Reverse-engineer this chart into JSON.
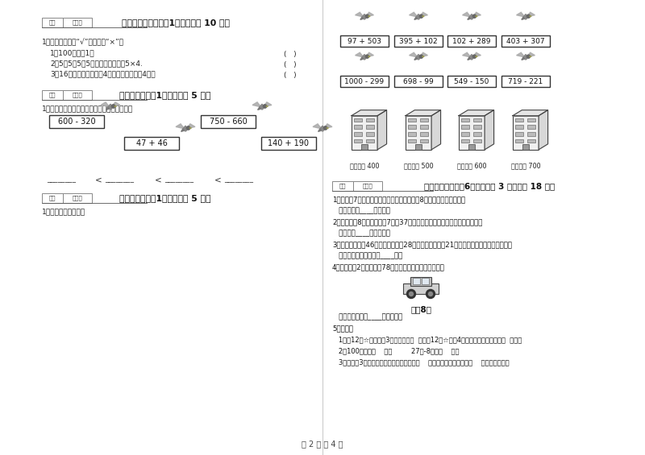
{
  "bg_color": "#ffffff",
  "page_label": "第 2 页 共 4 页",
  "sec5_header": "得分  评卷人",
  "sec5_title": "五、判断对与错（共1大题，共计 10 分）",
  "sec5_intro": "1．判断，对的画“√”，错的画“×”。",
  "sec5_items": [
    "1．100厘米＝1米",
    "2．5＋5＋5＋5改写成乘法算式是5×4.",
    "3．16个苹果，平均放在4个盘子里，每盘放4个。"
  ],
  "sec6_header": "得分  评卷人",
  "sec6_title": "六、比一比（共1大题，共计 5 分）",
  "sec6_intro": "1．把下列算式按得数大小，从小到大排一行。",
  "sec6_boxes": [
    "600 - 320",
    "47 + 46",
    "750 - 660",
    "140 + 190"
  ],
  "sec7_header": "得分  评卷人",
  "sec7_title": "七、连一连（共1大题，共计 5 分）",
  "sec7_intro": "1．估一估，连一连。",
  "right_birds_row1": [
    "97 + 503",
    "395 + 102",
    "102 + 289",
    "403 + 307"
  ],
  "right_birds_row2": [
    "1000 - 299",
    "698 - 99",
    "549 - 150",
    "719 - 221"
  ],
  "right_buildings": [
    "得数接近 400",
    "得数大约 500",
    "得数接近 600",
    "得数大约 700"
  ],
  "sec8_header": "得分  评卷人",
  "sec8_title": "八、解决问题（共6小题，每题 3 分，共计 18 分）",
  "sec8_p1": "1．小明有7张图片，小丽的图片张数是小明的8倍，小丽有几张图片？",
  "sec8_a1": "   答：小丽有____张图片。",
  "sec8_p2": "2．校园里有8排松树，每排7棵，37棵松树已经浇了水，还有多少棵没浇水？",
  "sec8_a2": "   答：还有____棵没浇水。",
  "sec8_p3": "3．水果店有水果46筐，上午卖出去28筐，下午又运进来21筐，水果店现在有水果多少筐？",
  "sec8_a3": "   答：水果店现在有水果____筐。",
  "sec8_p4": "4．希望小学2年级有学生78人，至少需要租几辆面包车？",
  "sec8_car_label": "限垈8人",
  "sec8_a4": "   答：至少需要租____辆面包车。",
  "sec8_p5": "5．填空。",
  "sec8_p5_1": "   1．把12个☆平均分成3份，每份是（  ）个；12个☆，每4个分成一份，可以分成（  ）份。",
  "sec8_p5_2": "   2．100厘米＝（    ）米         27米-8米＝（    ）米",
  "sec8_p5_3": "   3．画一条3厘米长的线段，一般应从尺的（    ）刻度开始画起，画到（    ）厘米的地方。"
}
